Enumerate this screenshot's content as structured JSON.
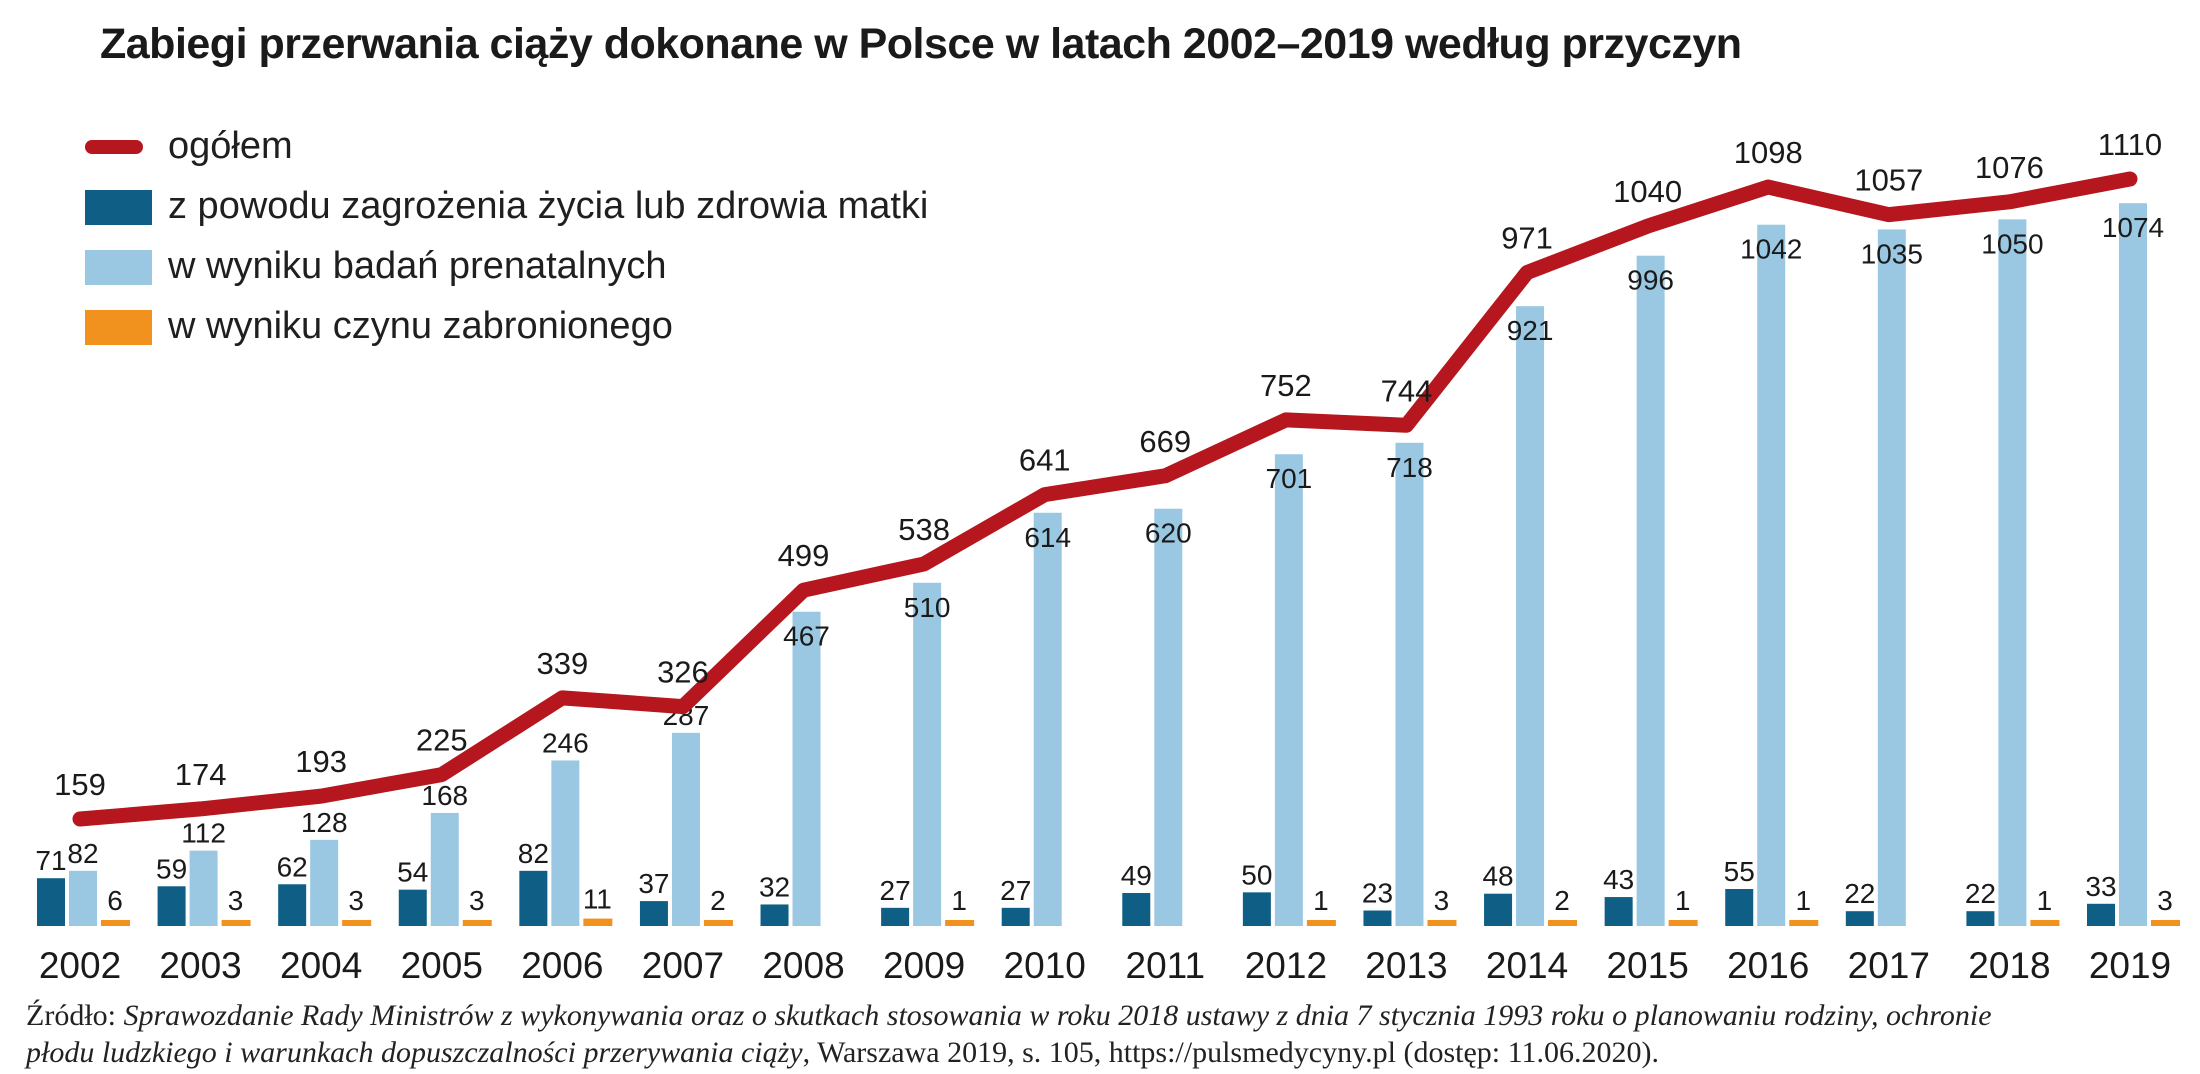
{
  "title": "Zabiegi przerwania ciąży dokonane w Polsce w latach 2002–2019 według przyczyn",
  "colors": {
    "total_line": "#b6161d",
    "mother_risk": "#0e5e85",
    "prenatal": "#9ac8e2",
    "illegal_act": "#f2921e",
    "label_text": "#1a1a1a"
  },
  "legend": [
    {
      "label": "ogółem",
      "swatch": "line-swatch",
      "color": "#b6161d"
    },
    {
      "label": "z powodu zagrożenia życia lub zdrowia matki",
      "swatch": "square-swatch",
      "color": "#0e5e85"
    },
    {
      "label": "w wyniku badań prenatalnych",
      "swatch": "square-swatch",
      "color": "#9ac8e2"
    },
    {
      "label": "w wyniku czynu zabronionego",
      "swatch": "square-swatch",
      "color": "#f2921e"
    }
  ],
  "chart_data": {
    "type": "bar",
    "title": "Zabiegi przerwania ciąży dokonane w Polsce w latach 2002–2019 według przyczyn",
    "categories": [
      "2002",
      "2003",
      "2004",
      "2005",
      "2006",
      "2007",
      "2008",
      "2009",
      "2010",
      "2011",
      "2012",
      "2013",
      "2014",
      "2015",
      "2016",
      "2017",
      "2018",
      "2019"
    ],
    "series": [
      {
        "name": "ogółem",
        "type": "line",
        "color": "#b6161d",
        "values": [
          159,
          174,
          193,
          225,
          339,
          326,
          499,
          538,
          641,
          669,
          752,
          744,
          971,
          1040,
          1098,
          1057,
          1076,
          1110
        ]
      },
      {
        "name": "z powodu zagrożenia życia lub zdrowia matki",
        "type": "bar",
        "color": "#0e5e85",
        "values": [
          71,
          59,
          62,
          54,
          82,
          37,
          32,
          27,
          27,
          49,
          50,
          23,
          48,
          43,
          55,
          22,
          22,
          33
        ]
      },
      {
        "name": "w wyniku badań prenatalnych",
        "type": "bar",
        "color": "#9ac8e2",
        "values": [
          82,
          112,
          128,
          168,
          246,
          287,
          467,
          510,
          614,
          620,
          701,
          718,
          921,
          996,
          1042,
          1035,
          1050,
          1074
        ]
      },
      {
        "name": "w wyniku czynu zabronionego",
        "type": "bar",
        "color": "#f2921e",
        "values": [
          6,
          3,
          3,
          3,
          11,
          2,
          null,
          1,
          null,
          null,
          1,
          3,
          2,
          1,
          1,
          null,
          1,
          3
        ]
      }
    ],
    "ylim": [
      0,
      1200
    ],
    "grid": false,
    "legend_position": "top-left",
    "xlabel": "",
    "ylabel": ""
  },
  "source": {
    "prefix": "Źródło: ",
    "italic_line1": "Sprawozdanie Rady Ministrów z wykonywania oraz o skutkach stosowania w roku 2018 ustawy z dnia 7 stycznia 1993 roku o planowaniu rodziny, ochronie",
    "italic_line2": "płodu ludzkiego i warunkach dopuszczalności przerywania ciąży",
    "rest_line2": ", Warszawa 2019, s. 105, https://pulsmedycyny.pl (dostęp: 11.06.2020)."
  }
}
